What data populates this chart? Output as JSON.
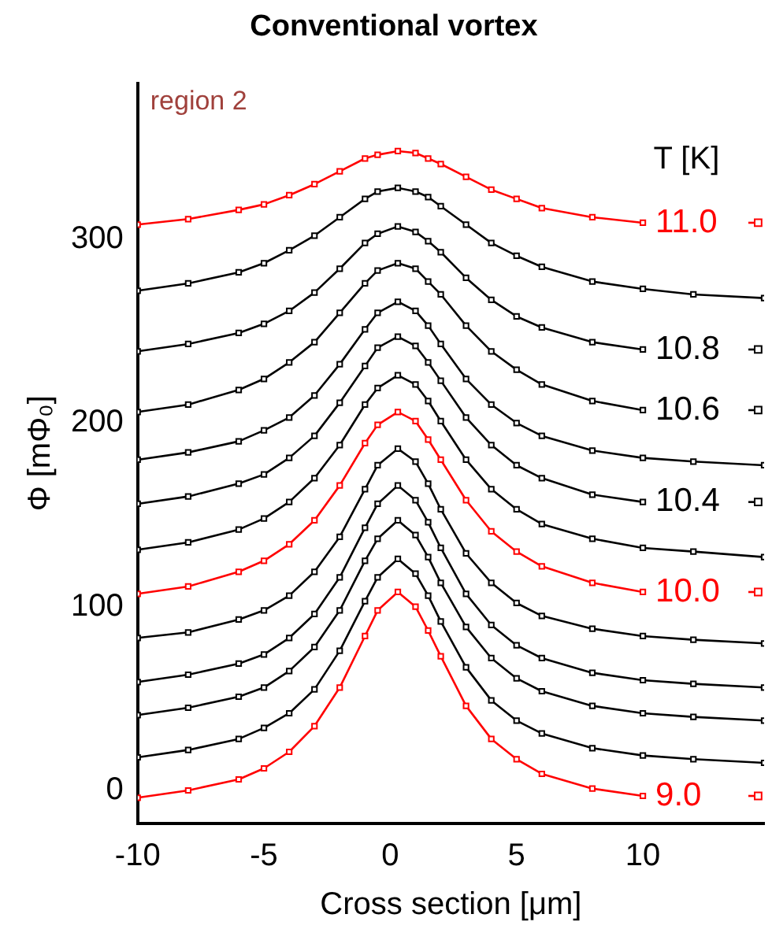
{
  "chart_data": {
    "type": "line",
    "title": "Conventional vortex",
    "xlabel": "Cross section [μm]",
    "ylabel": "Φ [mΦ₀]",
    "legend_title": "T [K]",
    "annotations": [
      "region 2"
    ],
    "x": [
      -10,
      -8,
      -6,
      -5,
      -4,
      -3,
      -2,
      -1,
      -0.5,
      0.3,
      1,
      1.5,
      2,
      3,
      4,
      5,
      6,
      8,
      10,
      12,
      14.8
    ],
    "series": [
      {
        "name": "9.0",
        "color": "#ff0000",
        "values": [
          -4,
          0,
          6,
          12,
          21,
          35,
          56,
          84,
          98,
          108,
          100,
          87,
          73,
          46,
          28,
          17,
          9,
          1,
          -3,
          null,
          null
        ]
      },
      {
        "color": "#000000",
        "values": [
          18,
          22,
          28,
          34,
          42,
          55,
          76,
          103,
          116,
          126,
          118,
          106,
          92,
          67,
          49,
          38,
          31,
          23,
          19,
          17,
          15
        ]
      },
      {
        "color": "#000000",
        "values": [
          41,
          45,
          51,
          56,
          65,
          78,
          98,
          125,
          137,
          147,
          139,
          127,
          113,
          89,
          72,
          61,
          54,
          46,
          42,
          40,
          38
        ]
      },
      {
        "color": "#000000",
        "values": [
          59,
          63,
          69,
          74,
          83,
          96,
          116,
          143,
          156,
          166,
          158,
          146,
          132,
          107,
          90,
          79,
          72,
          64,
          60,
          58,
          56
        ]
      },
      {
        "color": "#000000",
        "values": [
          83,
          86,
          93,
          98,
          106,
          119,
          138,
          164,
          177,
          186,
          179,
          167,
          153,
          129,
          113,
          102,
          95,
          88,
          84,
          82,
          80
        ]
      },
      {
        "name": "10.0",
        "color": "#ff0000",
        "values": [
          107,
          111,
          119,
          125,
          134,
          147,
          166,
          189,
          199,
          206,
          201,
          191,
          180,
          158,
          141,
          130,
          122,
          113,
          108,
          null,
          null
        ]
      },
      {
        "color": "#000000",
        "values": [
          131,
          135,
          142,
          148,
          157,
          170,
          188,
          210,
          219,
          226,
          221,
          212,
          201,
          180,
          164,
          153,
          145,
          137,
          132,
          130,
          127
        ]
      },
      {
        "name": "10.4",
        "color": "#000000",
        "values": [
          156,
          160,
          167,
          172,
          181,
          193,
          211,
          231,
          241,
          247,
          242,
          233,
          223,
          203,
          188,
          177,
          170,
          161,
          157,
          null,
          null
        ]
      },
      {
        "color": "#000000",
        "values": [
          180,
          184,
          190,
          196,
          203,
          215,
          232,
          251,
          260,
          266,
          261,
          253,
          243,
          224,
          210,
          200,
          193,
          185,
          181,
          179,
          177
        ]
      },
      {
        "name": "10.6",
        "color": "#000000",
        "values": [
          206,
          210,
          218,
          224,
          233,
          244,
          260,
          276,
          283,
          287,
          284,
          277,
          270,
          253,
          239,
          229,
          221,
          212,
          207,
          null,
          null
        ]
      },
      {
        "name": "10.8",
        "color": "#000000",
        "values": [
          239,
          243,
          249,
          254,
          261,
          271,
          284,
          298,
          303,
          307,
          304,
          299,
          293,
          279,
          267,
          258,
          252,
          244,
          240,
          null,
          null
        ]
      },
      {
        "color": "#000000",
        "values": [
          272,
          276,
          282,
          287,
          294,
          302,
          312,
          322,
          326,
          328,
          326,
          323,
          318,
          308,
          298,
          291,
          285,
          277,
          273,
          270,
          268
        ]
      },
      {
        "name": "11.0",
        "color": "#ff0000",
        "values": [
          308,
          311,
          316,
          319,
          324,
          330,
          337,
          344,
          346,
          348,
          347,
          344,
          341,
          334,
          327,
          322,
          317,
          312,
          309,
          null,
          null
        ]
      }
    ],
    "xlim": [
      -10,
      14.8
    ],
    "xticks": [
      -10,
      -5,
      0,
      5,
      10
    ],
    "ylim": [
      -18,
      385
    ],
    "yticks": [
      0,
      100,
      200,
      300
    ],
    "grid": false,
    "legend": "right",
    "marker": "square",
    "line_style": "solid"
  }
}
